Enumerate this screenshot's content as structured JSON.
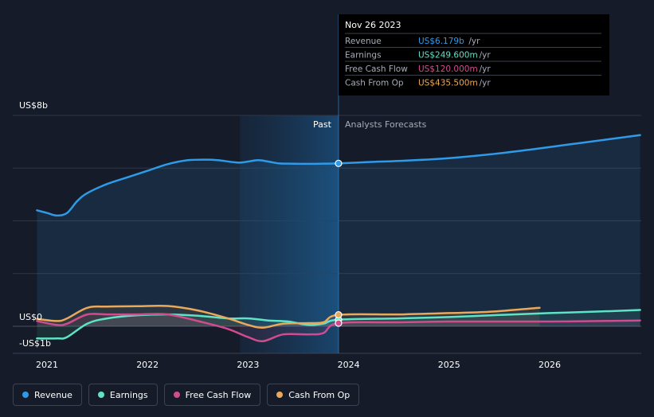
{
  "chart_data": {
    "type": "line",
    "unit": "US$",
    "y_tick_labels": [
      "US$8b",
      "US$0",
      "-US$1b"
    ],
    "ylim": [
      -1,
      8
    ],
    "x_tick_labels": [
      "2021",
      "2022",
      "2023",
      "2024",
      "2025",
      "2026"
    ],
    "xlim": [
      2020.9,
      2026.9
    ],
    "past_label": "Past",
    "forecast_label": "Analysts Forecasts",
    "past_region": [
      2022.92,
      2023.9
    ],
    "current_date": 2023.9,
    "series": [
      {
        "name": "Revenue",
        "color": "#2f9ae8",
        "x": [
          2020.9,
          2021.0,
          2021.1,
          2021.2,
          2021.3,
          2021.4,
          2021.6,
          2021.8,
          2022.0,
          2022.2,
          2022.4,
          2022.6,
          2022.7,
          2022.9,
          2023.0,
          2023.1,
          2023.2,
          2023.3,
          2023.4,
          2023.6,
          2023.75,
          2023.9,
          2024.2,
          2024.6,
          2025.0,
          2025.4,
          2025.8,
          2026.2,
          2026.6,
          2026.9
        ],
        "values": [
          4.4,
          4.3,
          4.2,
          4.3,
          4.75,
          5.05,
          5.4,
          5.65,
          5.9,
          6.15,
          6.3,
          6.32,
          6.3,
          6.21,
          6.25,
          6.3,
          6.25,
          6.18,
          6.17,
          6.16,
          6.17,
          6.179,
          6.23,
          6.29,
          6.38,
          6.52,
          6.7,
          6.9,
          7.1,
          7.25
        ]
      },
      {
        "name": "Earnings",
        "color": "#5ee3c5",
        "x": [
          2020.9,
          2021.1,
          2021.2,
          2021.4,
          2021.6,
          2021.9,
          2022.2,
          2022.5,
          2022.8,
          2023.0,
          2023.2,
          2023.4,
          2023.6,
          2023.75,
          2023.9,
          2024.5,
          2025.0,
          2025.5,
          2026.0,
          2026.5,
          2026.9
        ],
        "values": [
          -0.45,
          -0.45,
          -0.4,
          0.1,
          0.3,
          0.42,
          0.45,
          0.4,
          0.3,
          0.3,
          0.22,
          0.18,
          0.05,
          0.1,
          0.2496,
          0.3,
          0.35,
          0.43,
          0.5,
          0.56,
          0.62
        ]
      },
      {
        "name": "Free Cash Flow",
        "color": "#d04c8e",
        "x": [
          2020.9,
          2021.1,
          2021.2,
          2021.4,
          2021.6,
          2021.9,
          2022.2,
          2022.5,
          2022.8,
          2023.0,
          2023.15,
          2023.35,
          2023.6,
          2023.75,
          2023.9,
          2024.5,
          2025.0,
          2025.5,
          2026.0,
          2026.5,
          2026.9
        ],
        "values": [
          0.2,
          0.05,
          0.1,
          0.45,
          0.45,
          0.45,
          0.45,
          0.2,
          -0.1,
          -0.4,
          -0.55,
          -0.3,
          -0.3,
          -0.25,
          0.12,
          0.15,
          0.18,
          0.18,
          0.18,
          0.2,
          0.22
        ]
      },
      {
        "name": "Cash From Op",
        "color": "#eaa95a",
        "x": [
          2020.9,
          2021.1,
          2021.2,
          2021.4,
          2021.6,
          2021.9,
          2022.2,
          2022.5,
          2022.8,
          2023.0,
          2023.15,
          2023.35,
          2023.6,
          2023.75,
          2023.9,
          2024.5,
          2025.0,
          2025.4,
          2025.9
        ],
        "values": [
          0.28,
          0.2,
          0.3,
          0.7,
          0.75,
          0.76,
          0.77,
          0.6,
          0.3,
          0.05,
          -0.05,
          0.1,
          0.12,
          0.15,
          0.4355,
          0.45,
          0.5,
          0.55,
          0.7
        ]
      }
    ],
    "tooltip": {
      "date": "Nov 26 2023",
      "rows": [
        {
          "label": "Revenue",
          "value": "US$6.179b",
          "unit": "/yr",
          "color": "#2f9ae8"
        },
        {
          "label": "Earnings",
          "value": "US$249.600m",
          "unit": "/yr",
          "color": "#5ee3c5"
        },
        {
          "label": "Free Cash Flow",
          "value": "US$120.000m",
          "unit": "/yr",
          "color": "#d04c8e"
        },
        {
          "label": "Cash From Op",
          "value": "US$435.500m",
          "unit": "/yr",
          "color": "#eaa95a"
        }
      ]
    }
  },
  "legend": [
    {
      "label": "Revenue",
      "color": "#2f9ae8"
    },
    {
      "label": "Earnings",
      "color": "#5ee3c5"
    },
    {
      "label": "Free Cash Flow",
      "color": "#d04c8e"
    },
    {
      "label": "Cash From Op",
      "color": "#eaa95a"
    }
  ]
}
